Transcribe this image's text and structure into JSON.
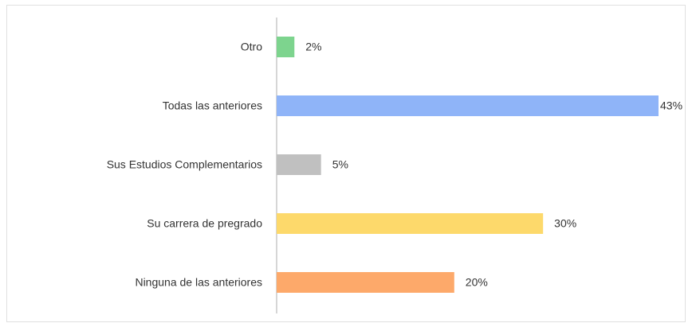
{
  "chart_data": {
    "type": "bar",
    "categories": [
      "Otro",
      "Todas las anteriores",
      "Sus Estudios Complementarios",
      "Su carrera de pregrado",
      "Ninguna de las anteriores"
    ],
    "values": [
      2,
      43,
      5,
      30,
      20
    ],
    "value_labels": [
      "2%",
      "43%",
      "5%",
      "30%",
      "20%"
    ],
    "colors": [
      "#7dd48e",
      "#8fb4f8",
      "#c0c0c0",
      "#fdd96b",
      "#fda96a"
    ],
    "xlim": [
      0,
      43
    ]
  }
}
